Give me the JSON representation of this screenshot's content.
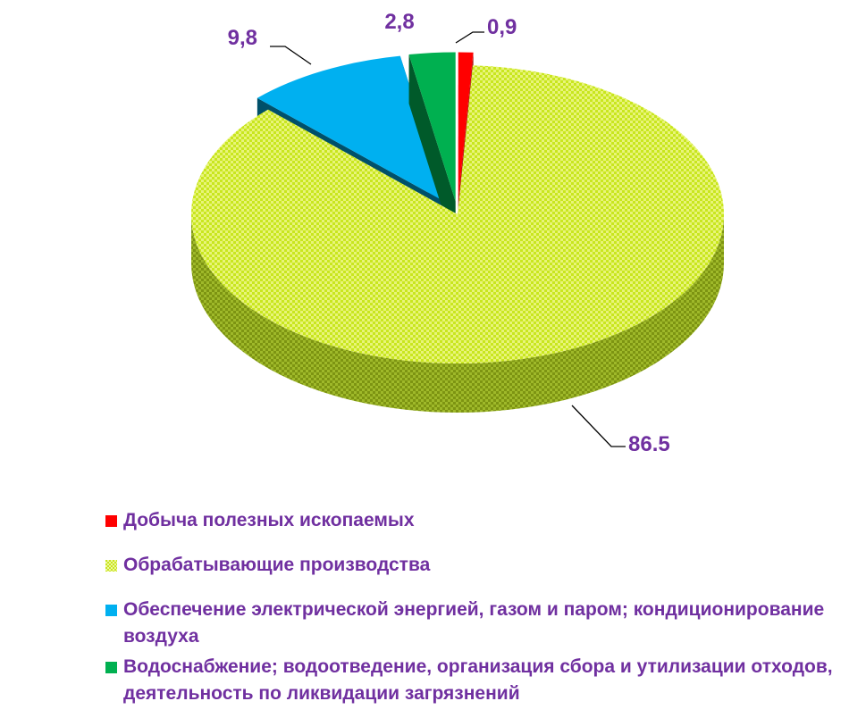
{
  "chart_data": {
    "type": "pie",
    "title": "",
    "categories": [
      "Добыча полезных ископаемых",
      "Обрабатывающие производства",
      "Обеспечение электрической энергией, газом и паром; кондиционирование воздуха",
      "Водоснабжение; водоотведение, организация сбора и утилизации отходов, деятельность по ликвидации загрязнений"
    ],
    "values": [
      0.9,
      86.5,
      9.8,
      2.8
    ],
    "data_labels": [
      "0,9",
      "86.5",
      "9,8",
      "2,8"
    ],
    "colors": [
      "#ff0000",
      "#c8e61e",
      "#00b0f0",
      "#00b050"
    ],
    "side_colors": [
      "#a00000",
      "#7d9412",
      "#00506a",
      "#005a2a"
    ],
    "patterns": [
      "solid",
      "checkerboard",
      "solid",
      "solid"
    ],
    "exploded": [
      true,
      false,
      true,
      true
    ],
    "start_angle_deg": 90,
    "legend_position": "bottom",
    "label_color": "#7030a0",
    "three_d": true
  },
  "legend": {
    "items": [
      {
        "label": "Добыча полезных ископаемых"
      },
      {
        "label": "Обрабатывающие производства"
      },
      {
        "label": "Обеспечение электрической энергией, газом и паром; кондиционирование воздуха"
      },
      {
        "label": "Водоснабжение; водоотведение, организация сбора и утилизации отходов, деятельность по ликвидации загрязнений"
      }
    ]
  }
}
